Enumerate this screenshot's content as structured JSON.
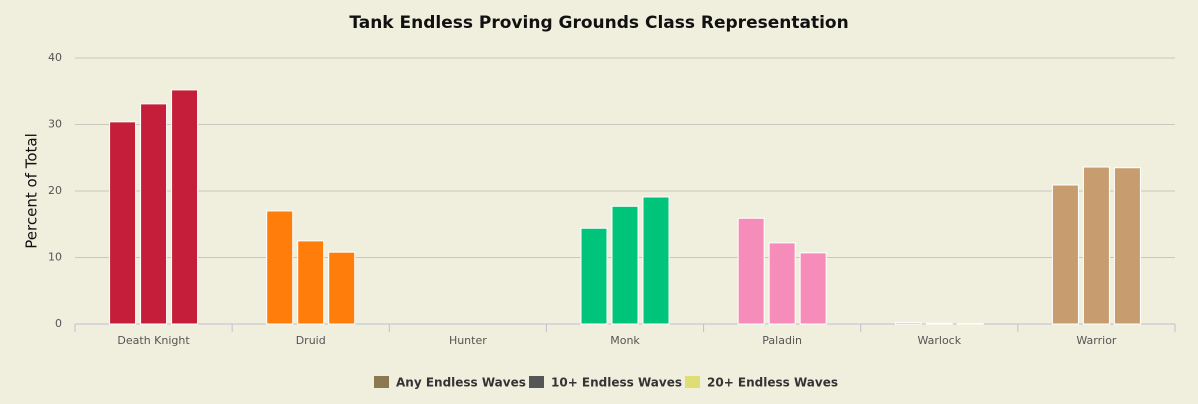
{
  "chart_data": {
    "type": "bar",
    "title": "Tank Endless Proving Grounds Class Representation",
    "y_label": "Percent of Total",
    "categories": [
      "Death Knight",
      "Druid",
      "Hunter",
      "Monk",
      "Paladin",
      "Warlock",
      "Warrior"
    ],
    "category_colors": [
      "#c41e3a",
      "#ff7d0a",
      "#abd473",
      "#00c47a",
      "#f58cba",
      "#9482c9",
      "#c79c6e"
    ],
    "series": [
      {
        "name": "Any Endless Waves",
        "color": "#8c7853",
        "values": [
          30.4,
          17.0,
          0,
          14.4,
          15.9,
          0.2,
          20.9
        ]
      },
      {
        "name": "10+ Endless Waves",
        "color": "#555555",
        "values": [
          33.1,
          12.5,
          0,
          17.7,
          12.2,
          0.1,
          23.6
        ]
      },
      {
        "name": "20+ Endless Waves",
        "color": "#dede75",
        "values": [
          35.2,
          10.8,
          0,
          19.1,
          10.7,
          0.05,
          23.5
        ]
      }
    ],
    "ylim": [
      0,
      40
    ],
    "yticks": [
      0,
      10,
      20,
      30,
      40
    ],
    "grid": true,
    "legend": "bottom"
  }
}
